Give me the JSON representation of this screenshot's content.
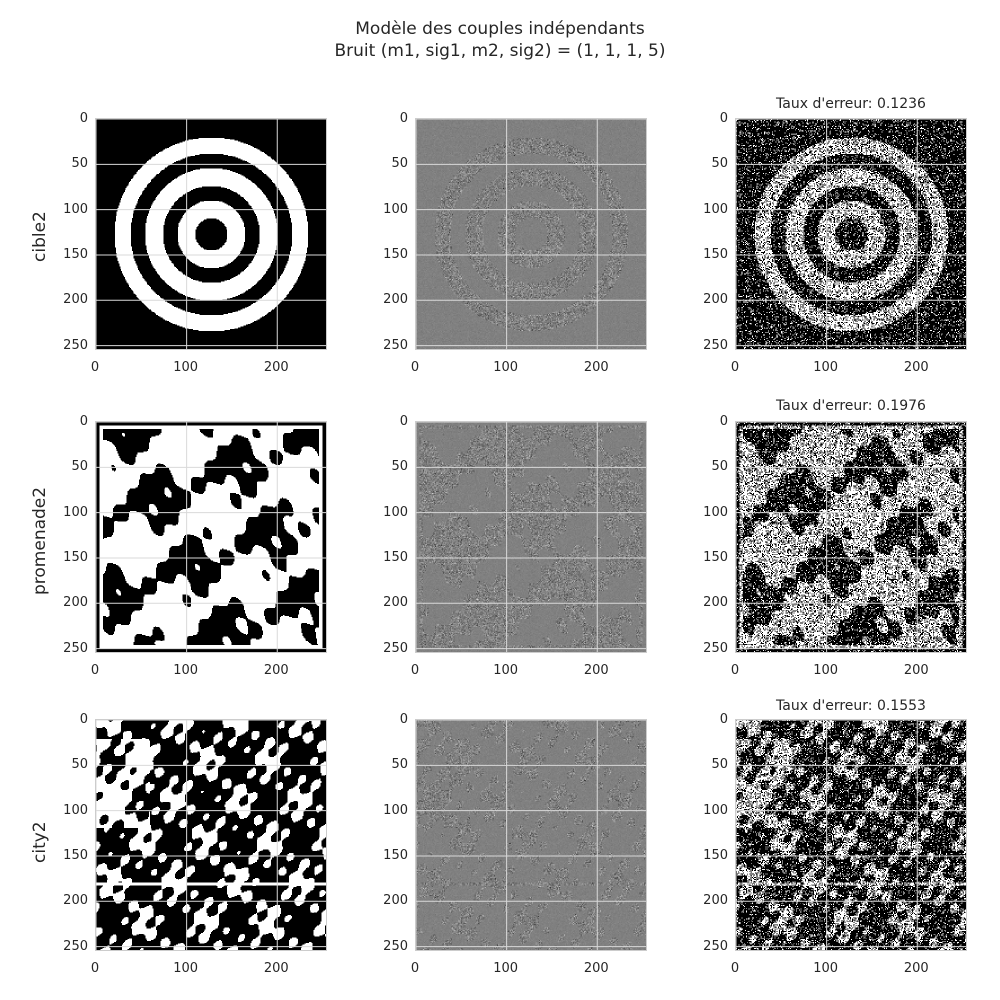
{
  "figure": {
    "title_line1": "Modèle des couples indépendants",
    "title_line2": "Bruit (m1, sig1, m2, sig2) = (1, 1, 1, 5)"
  },
  "chart_data": [
    {
      "type": "grid-of-images",
      "rows": [
        {
          "name": "cible2",
          "error_title": "Taux d'erreur: 0.1236"
        },
        {
          "name": "promenade2",
          "error_title": "Taux d'erreur: 0.1976"
        },
        {
          "name": "city2",
          "error_title": "Taux d'erreur: 0.1553"
        }
      ],
      "columns": [
        "original",
        "noisy",
        "segmented"
      ],
      "image_size": [
        256,
        256
      ],
      "x_ticks": [
        "0",
        "100",
        "200"
      ],
      "y_ticks": [
        "0",
        "50",
        "100",
        "150",
        "200",
        "250"
      ],
      "x_tick_values": [
        0,
        100,
        200
      ],
      "y_tick_values": [
        0,
        50,
        100,
        150,
        200,
        250
      ],
      "grid": true
    }
  ],
  "colors": {
    "gridline": "#d9d9d9",
    "frame": "#cccccc",
    "noise_bg": "#808080"
  }
}
